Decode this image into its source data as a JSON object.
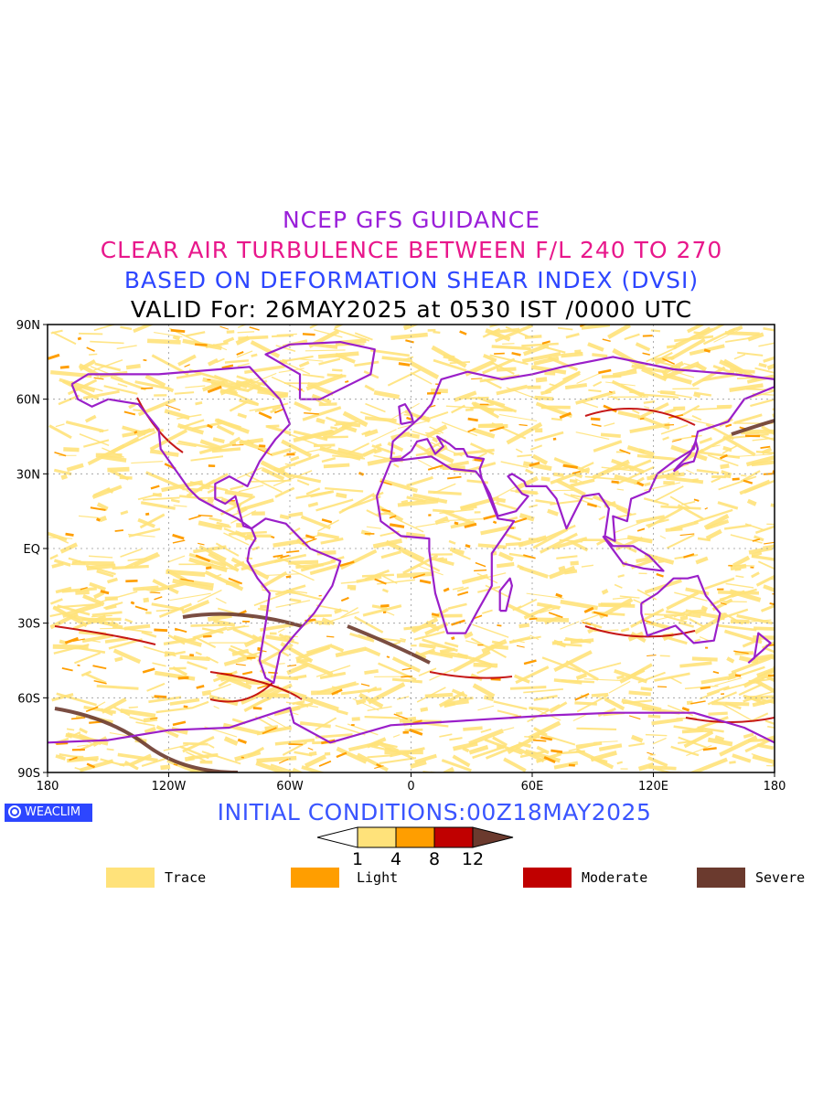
{
  "titles": {
    "line1": "NCEP GFS GUIDANCE",
    "line2": "CLEAR AIR TURBULENCE BETWEEN F/L 240 TO 270",
    "line3": "BASED ON DEFORMATION SHEAR INDEX (DVSI)",
    "line4": "VALID For: 26MAY2025 at 0530 IST /0000 UTC"
  },
  "colors": {
    "line1": "#9a1fd9",
    "line2": "#e8178b",
    "line3": "#2d46ff",
    "line4": "#000000",
    "init": "#3a55ff",
    "coastline": "#9a1fc9",
    "trace": "#ffe27a",
    "light": "#ff9e00",
    "moderate": "#c00000",
    "severe": "#6b3a2e"
  },
  "map": {
    "y_ticks": [
      "90N",
      "60N",
      "30N",
      "EQ",
      "30S",
      "60S",
      "90S"
    ],
    "x_ticks": [
      "180",
      "120W",
      "60W",
      "0",
      "60E",
      "120E",
      "180"
    ],
    "extent": {
      "lon": [
        -180,
        180
      ],
      "lat": [
        -90,
        90
      ]
    }
  },
  "logo": {
    "text": "WEACLIM"
  },
  "initial_conditions": "INITIAL CONDITIONS:00Z18MAY2025",
  "colorbar": {
    "ticks": [
      "1",
      "4",
      "8",
      "12"
    ]
  },
  "legend": [
    {
      "label": "Trace",
      "color": "#ffe27a"
    },
    {
      "label": "Light",
      "color": "#ff9e00"
    },
    {
      "label": "Moderate",
      "color": "#c00000"
    },
    {
      "label": "Severe",
      "color": "#6b3a2e"
    }
  ]
}
